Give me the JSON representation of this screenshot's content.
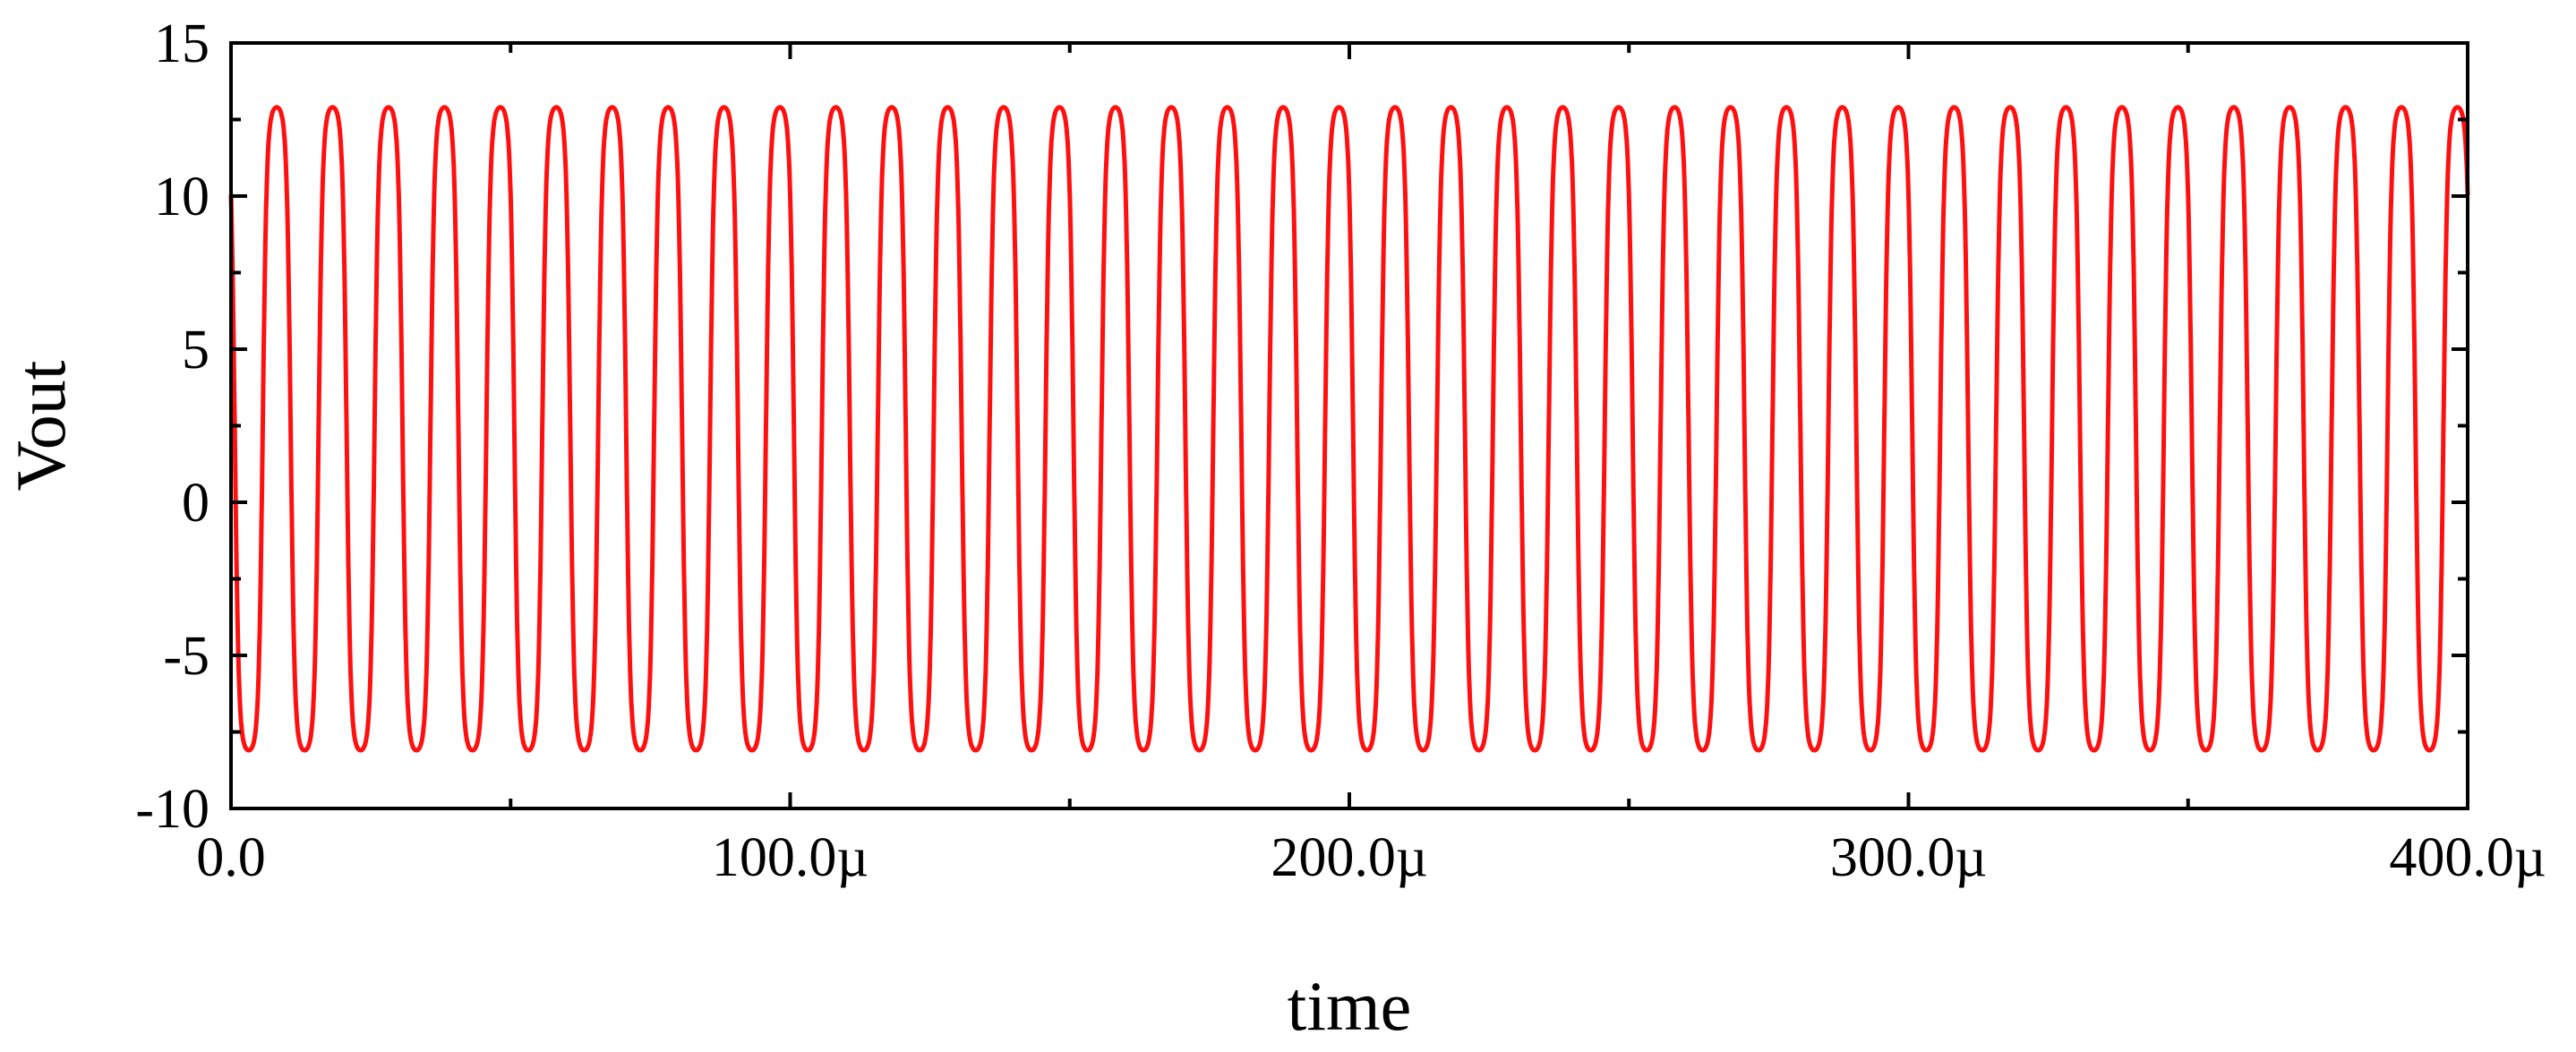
{
  "chart_data": {
    "type": "line",
    "title": "",
    "xlabel": "time",
    "ylabel": "Vout",
    "xlim": [
      0,
      0.0004
    ],
    "ylim": [
      -10,
      15
    ],
    "x_ticks": [
      0,
      0.0001,
      0.0002,
      0.0003,
      0.0004
    ],
    "x_tick_labels": [
      "0.0",
      "100.0µ",
      "200.0µ",
      "300.0µ",
      "400.0µ"
    ],
    "y_ticks": [
      -10,
      -5,
      0,
      5,
      10,
      15
    ],
    "y_tick_labels": [
      "-10",
      "-5",
      "0",
      "5",
      "10",
      "15"
    ],
    "grid": false,
    "legend": "none",
    "series": [
      {
        "color": "#ff1010",
        "waveform": "clipped periodic oscillation",
        "period": 1e-05,
        "cycles": 40,
        "high": 12.9,
        "low": -8.1,
        "x_start": 0,
        "x_end": 0.0004
      }
    ]
  }
}
